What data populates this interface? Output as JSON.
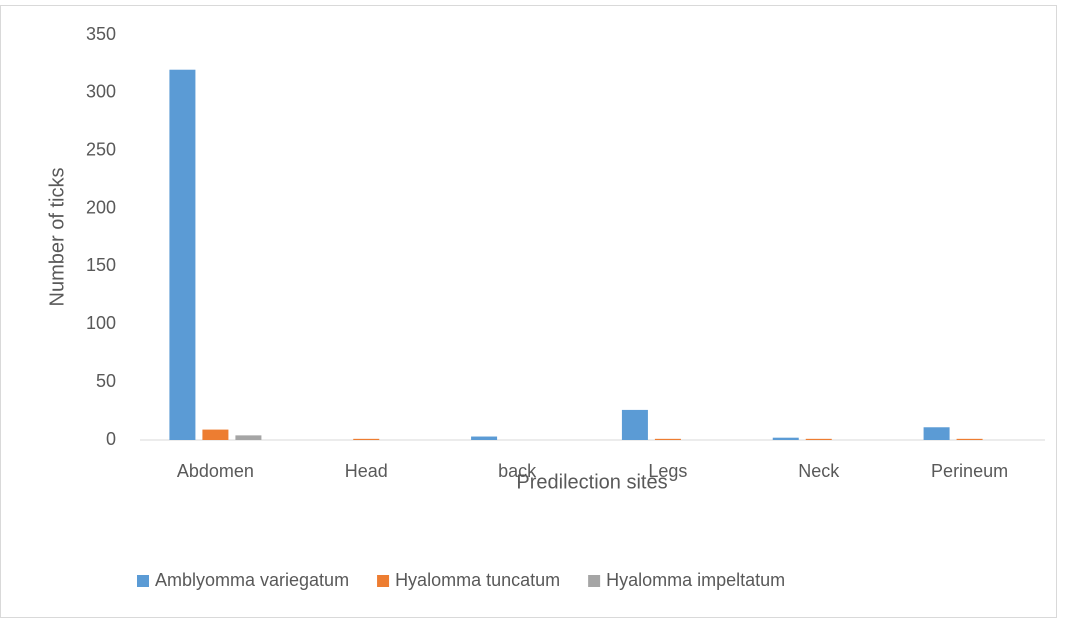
{
  "chart_data": {
    "type": "bar",
    "xlabel": "Predilection sites",
    "ylabel": "Number of ticks",
    "categories": [
      "Abdomen",
      "Head",
      "back",
      "Legs",
      "Neck",
      "Perineum"
    ],
    "series": [
      {
        "name": "Amblyomma variegatum",
        "color": "#5b9bd5",
        "values": [
          320,
          0,
          3,
          26,
          2,
          11
        ]
      },
      {
        "name": "Hyalomma tuncatum",
        "color": "#ed7d31",
        "values": [
          9,
          1,
          0,
          1,
          1,
          1
        ]
      },
      {
        "name": "Hyalomma impeltatum",
        "color": "#a5a5a5",
        "values": [
          4,
          0,
          0,
          0,
          0,
          0
        ]
      }
    ],
    "ylim": [
      0,
      350
    ],
    "yticks": [
      0,
      50,
      100,
      150,
      200,
      250,
      300,
      350
    ],
    "grid": false,
    "legend": "bottom"
  }
}
